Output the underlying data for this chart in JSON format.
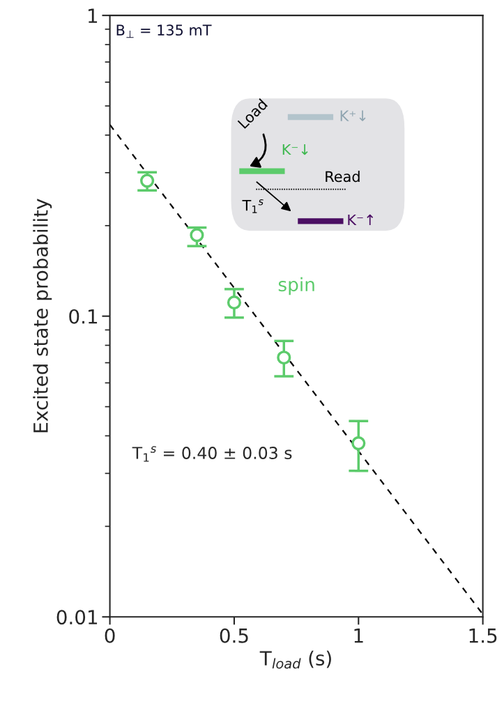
{
  "chart_data": {
    "type": "scatter",
    "xlabel": "T$_{load}$ (s)",
    "ylabel": "Excited state probability",
    "series": [
      {
        "name": "spin",
        "color": "#5ccb6b",
        "marker": "circle",
        "x": [
          0.15,
          0.35,
          0.5,
          0.7,
          1.0
        ],
        "values": [
          0.282,
          0.186,
          0.111,
          0.0728,
          0.0378
        ],
        "errors": [
          [
            0.262,
            0.301
          ],
          [
            0.171,
            0.197
          ],
          [
            0.0989,
            0.123
          ],
          [
            0.0631,
            0.0827
          ],
          [
            0.0306,
            0.0448
          ]
        ]
      },
      {
        "type": "line",
        "color": "#000000",
        "line_style": "dashed",
        "x": [
          0,
          1.5
        ],
        "values": [
          0.433,
          0.0102
        ]
      }
    ],
    "log": "y",
    "xlim": [
      0,
      1.5
    ],
    "xticks": [
      0,
      0.5,
      1,
      1.5
    ],
    "ylim": [
      0.01,
      1
    ],
    "yticks": [
      0.01,
      0.1,
      1
    ],
    "grid": false,
    "annotations": [
      "B$_{⊥}$ = 135 mT",
      "T$_{1}$$^{s}$ = 0.40 ± 0.03 s",
      "Load",
      "K⁺↓",
      "K⁻↓",
      "Read",
      "T$_{1}$$^{s}$",
      "K⁻↑"
    ]
  }
}
